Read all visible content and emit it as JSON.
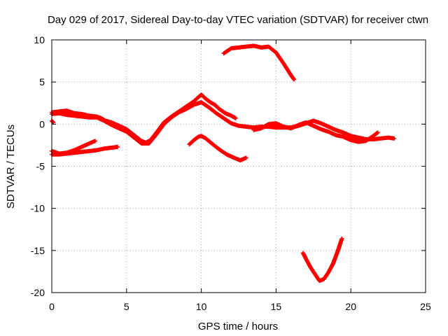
{
  "chart_data": {
    "type": "scatter",
    "title": "Day 029 of 2017, Sidereal Day-to-day VTEC variation (SDTVAR) for receiver ctwn",
    "xlabel": "GPS time / hours",
    "ylabel": "SDTVAR / TECUs",
    "xlim": [
      0,
      25
    ],
    "ylim": [
      -20,
      10
    ],
    "xticks": [
      0,
      5,
      10,
      15,
      20,
      25
    ],
    "yticks": [
      -20,
      -15,
      -10,
      -5,
      0,
      5,
      10
    ],
    "grid": true,
    "marker": "plus",
    "color": "#ff0000",
    "series": [
      {
        "name": "arc-1",
        "points": [
          [
            0,
            1.4
          ],
          [
            0.5,
            1.5
          ],
          [
            1,
            1.6
          ],
          [
            1.5,
            1.3
          ],
          [
            2,
            1.2
          ],
          [
            2.5,
            1.0
          ],
          [
            3,
            0.9
          ],
          [
            3.3,
            0.7
          ],
          [
            3.6,
            0.4
          ],
          [
            4,
            0.2
          ],
          [
            4.5,
            -0.2
          ],
          [
            5,
            -0.6
          ],
          [
            5.5,
            -1.3
          ],
          [
            6,
            -2.0
          ],
          [
            6.3,
            -2.2
          ],
          [
            6.6,
            -1.9
          ],
          [
            7,
            -1.0
          ],
          [
            7.5,
            0.2
          ],
          [
            8,
            0.9
          ],
          [
            8.5,
            1.5
          ],
          [
            9,
            2.1
          ],
          [
            9.5,
            2.7
          ],
          [
            9.8,
            3.2
          ],
          [
            10,
            3.5
          ],
          [
            10.3,
            3.0
          ],
          [
            10.6,
            2.6
          ],
          [
            10.9,
            2.3
          ],
          [
            11.2,
            1.8
          ],
          [
            11.6,
            1.3
          ],
          [
            12,
            1.0
          ],
          [
            12.3,
            0.7
          ]
        ]
      },
      {
        "name": "arc-2",
        "points": [
          [
            0,
            1.2
          ],
          [
            0.5,
            1.3
          ],
          [
            1,
            1.1
          ],
          [
            1.5,
            1.0
          ],
          [
            2,
            0.9
          ],
          [
            2.5,
            0.8
          ],
          [
            3,
            0.8
          ],
          [
            3.5,
            0.4
          ],
          [
            4,
            -0.1
          ],
          [
            4.5,
            -0.5
          ],
          [
            5,
            -0.9
          ],
          [
            5.5,
            -1.6
          ],
          [
            6,
            -2.3
          ],
          [
            6.5,
            -2.3
          ],
          [
            7,
            -1.2
          ],
          [
            7.5,
            0.0
          ],
          [
            8,
            0.8
          ],
          [
            8.5,
            1.4
          ],
          [
            9,
            1.8
          ],
          [
            9.5,
            2.3
          ],
          [
            10,
            2.6
          ],
          [
            10.5,
            2.0
          ],
          [
            11,
            1.3
          ],
          [
            11.5,
            0.7
          ],
          [
            12,
            0.1
          ],
          [
            12.5,
            -0.2
          ],
          [
            13,
            -0.3
          ],
          [
            13.5,
            -0.4
          ],
          [
            14,
            -0.3
          ],
          [
            14.5,
            -0.3
          ],
          [
            15,
            -0.4
          ],
          [
            15.5,
            -0.4
          ],
          [
            16,
            -0.4
          ],
          [
            16.5,
            -0.2
          ],
          [
            17,
            0.1
          ],
          [
            17.5,
            0.4
          ],
          [
            18,
            0.1
          ],
          [
            18.5,
            -0.3
          ],
          [
            19,
            -0.7
          ],
          [
            19.5,
            -1.0
          ],
          [
            20,
            -1.4
          ],
          [
            20.5,
            -1.6
          ],
          [
            21,
            -1.8
          ],
          [
            21.5,
            -1.8
          ],
          [
            22,
            -1.7
          ],
          [
            22.5,
            -1.6
          ],
          [
            22.9,
            -1.7
          ]
        ]
      },
      {
        "name": "arc-3",
        "points": [
          [
            0,
            0.4
          ],
          [
            0.1,
            0.2
          ]
        ]
      },
      {
        "name": "arc-4",
        "points": [
          [
            0,
            -3.2
          ],
          [
            0.5,
            -3.5
          ],
          [
            1,
            -3.4
          ],
          [
            1.5,
            -3.1
          ],
          [
            2,
            -2.7
          ],
          [
            2.5,
            -2.3
          ],
          [
            2.9,
            -2.0
          ]
        ]
      },
      {
        "name": "arc-5",
        "points": [
          [
            0,
            -3.6
          ],
          [
            0.5,
            -3.6
          ],
          [
            1,
            -3.5
          ],
          [
            1.5,
            -3.4
          ],
          [
            2,
            -3.3
          ],
          [
            2.5,
            -3.2
          ],
          [
            3,
            -3.1
          ],
          [
            3.5,
            -2.9
          ],
          [
            4,
            -2.8
          ],
          [
            4.4,
            -2.7
          ]
        ]
      },
      {
        "name": "arc-6",
        "points": [
          [
            11.5,
            8.4
          ],
          [
            12,
            9.0
          ],
          [
            12.5,
            9.1
          ],
          [
            13,
            9.2
          ],
          [
            13.5,
            9.3
          ],
          [
            14,
            9.1
          ],
          [
            14.5,
            9.2
          ],
          [
            15,
            8.5
          ],
          [
            15.5,
            7.2
          ],
          [
            16,
            5.8
          ],
          [
            16.2,
            5.3
          ]
        ]
      },
      {
        "name": "arc-7",
        "points": [
          [
            9.2,
            -2.4
          ],
          [
            9.5,
            -1.9
          ],
          [
            9.8,
            -1.5
          ],
          [
            10,
            -1.4
          ],
          [
            10.3,
            -1.7
          ],
          [
            10.7,
            -2.3
          ],
          [
            11.2,
            -3.0
          ],
          [
            11.7,
            -3.6
          ],
          [
            12.2,
            -4.0
          ],
          [
            12.6,
            -4.3
          ],
          [
            13,
            -4.0
          ]
        ]
      },
      {
        "name": "arc-8",
        "points": [
          [
            13.5,
            -0.7
          ],
          [
            14,
            -0.5
          ],
          [
            14.5,
            0.0
          ],
          [
            15,
            0.1
          ],
          [
            15.5,
            -0.3
          ],
          [
            16,
            -0.5
          ],
          [
            16.5,
            -0.1
          ],
          [
            17,
            0.2
          ],
          [
            17.5,
            -0.2
          ],
          [
            18,
            -0.6
          ],
          [
            18.5,
            -0.9
          ],
          [
            19,
            -1.3
          ],
          [
            19.5,
            -1.5
          ],
          [
            20,
            -1.9
          ],
          [
            20.5,
            -2.1
          ],
          [
            21,
            -2.0
          ],
          [
            21.5,
            -1.4
          ],
          [
            21.8,
            -1.0
          ]
        ]
      },
      {
        "name": "arc-9",
        "points": [
          [
            16.8,
            -15.3
          ],
          [
            17,
            -16.0
          ],
          [
            17.3,
            -17.0
          ],
          [
            17.6,
            -17.8
          ],
          [
            17.9,
            -18.6
          ],
          [
            18.2,
            -18.4
          ],
          [
            18.5,
            -17.6
          ],
          [
            18.8,
            -16.6
          ],
          [
            19.1,
            -15.2
          ],
          [
            19.4,
            -13.6
          ]
        ]
      }
    ]
  }
}
